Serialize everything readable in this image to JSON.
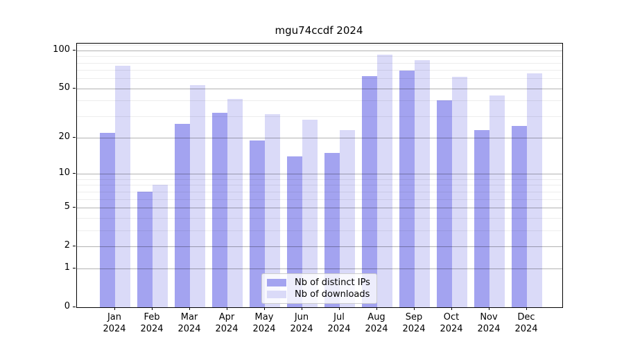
{
  "title": "mgu74ccdf 2024",
  "chart_data": {
    "type": "bar",
    "title": "mgu74ccdf 2024",
    "categories": [
      "Jan",
      "Feb",
      "Mar",
      "Apr",
      "May",
      "Jun",
      "Jul",
      "Aug",
      "Sep",
      "Oct",
      "Nov",
      "Dec"
    ],
    "year_label": "2024",
    "series": [
      {
        "name": "Nb of distinct IPs",
        "color": "#a3a3f0",
        "values": [
          22,
          7,
          26,
          32,
          19,
          14,
          15,
          63,
          69,
          40,
          23,
          25
        ]
      },
      {
        "name": "Nb of downloads",
        "color": "#dadaf8",
        "values": [
          76,
          8,
          53,
          41,
          31,
          28,
          23,
          93,
          84,
          62,
          44,
          66
        ]
      }
    ],
    "xlabel": "",
    "ylabel": "",
    "y_scale": "log1p",
    "y_ticks": [
      0,
      1,
      2,
      5,
      10,
      20,
      50,
      100
    ],
    "y_tick_labels": [
      "0",
      "1",
      "2",
      "5",
      "10",
      "20",
      "50",
      "100"
    ],
    "y_minor_ticks": [
      3,
      4,
      6,
      7,
      8,
      9,
      30,
      40,
      60,
      70,
      80,
      90,
      110
    ],
    "y_max": 113,
    "grid": "both",
    "grid_over_bars": true,
    "legend_position": "lower center"
  }
}
